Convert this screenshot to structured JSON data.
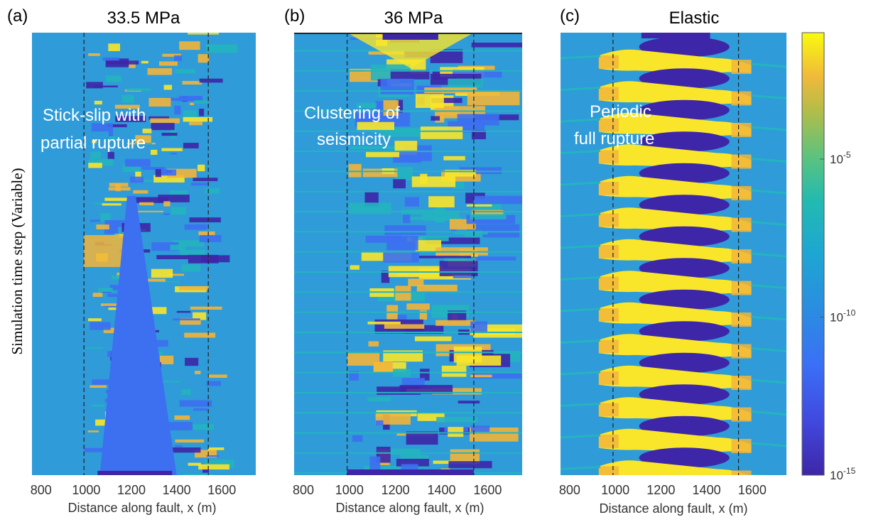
{
  "figure": {
    "ylabel": "Simulation time step (Variable)"
  },
  "chart_data": [
    {
      "type": "heatmap",
      "panel_label": "(a)",
      "title": "33.5 MPa",
      "xlabel": "Distance along fault, x (m)",
      "ylabel": "Simulation time step (Variable)",
      "xlim": [
        760,
        1750
      ],
      "xticks": [
        800,
        1000,
        1200,
        1400,
        1600
      ],
      "dashed_lines_x": [
        990,
        1540
      ],
      "annotation": [
        "Stick-slip with",
        "partial rupture"
      ],
      "pattern": "stick-slip"
    },
    {
      "type": "heatmap",
      "panel_label": "(b)",
      "title": "36 MPa",
      "xlabel": "Distance along fault, x (m)",
      "xlim": [
        760,
        1750
      ],
      "xticks": [
        800,
        1000,
        1200,
        1400,
        1600
      ],
      "dashed_lines_x": [
        990,
        1540
      ],
      "annotation": [
        "Clustering of",
        "seismicity"
      ],
      "pattern": "clustering"
    },
    {
      "type": "heatmap",
      "panel_label": "(c)",
      "title": "Elastic",
      "xlabel": "Distance along fault, x (m)",
      "xlim": [
        760,
        1750
      ],
      "xticks": [
        800,
        1000,
        1200,
        1400,
        1600
      ],
      "dashed_lines_x": [
        990,
        1540
      ],
      "annotation": [
        "Periodic",
        "full rupture"
      ],
      "pattern": "periodic",
      "cycles": 14
    }
  ],
  "colorbar": {
    "colormap": "parula",
    "scale": "log",
    "range_exponent": [
      -15,
      -1
    ],
    "ticks": [
      {
        "base": "10",
        "exp": "-5",
        "value_exp": -5
      },
      {
        "base": "10",
        "exp": "-10",
        "value_exp": -10
      },
      {
        "base": "10",
        "exp": "-15",
        "value_exp": -15
      }
    ]
  },
  "colors": {
    "background_field": "#2f9bd8",
    "dark": "#3e26a8",
    "blue": "#3d6ff1",
    "teal": "#24b4c0",
    "yellow": "#f9e62a",
    "orange": "#f2b53a"
  }
}
